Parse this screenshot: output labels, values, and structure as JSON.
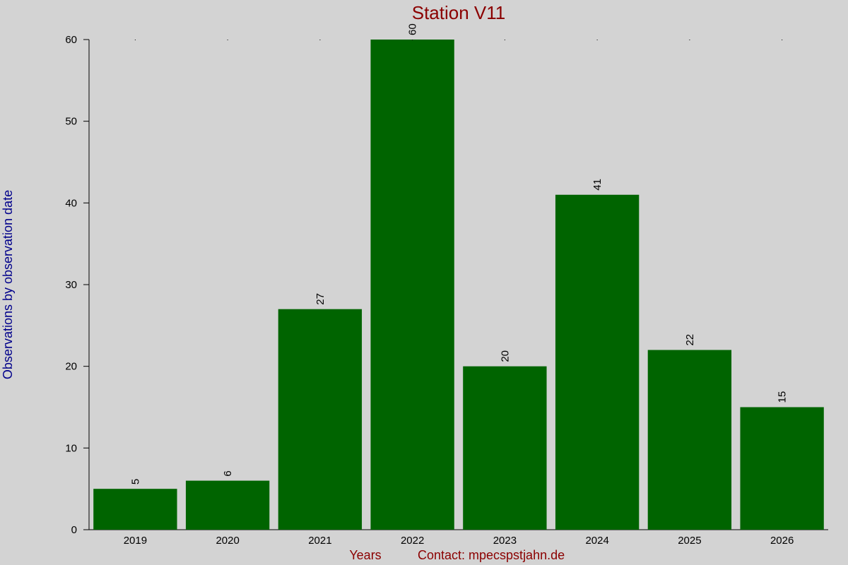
{
  "chart_data": {
    "type": "bar",
    "title": "Station V11",
    "xlabel": "Years",
    "contact": "Contact: mpecspstjahn.de",
    "ylabel": "Observations by observation date",
    "categories": [
      "2019",
      "2020",
      "2021",
      "2022",
      "2023",
      "2024",
      "2025",
      "2026"
    ],
    "values": [
      5,
      6,
      27,
      60,
      20,
      41,
      22,
      15
    ],
    "ylim": [
      0,
      60
    ],
    "yticks": [
      0,
      10,
      20,
      30,
      40,
      50,
      60
    ],
    "grid": false,
    "legend": "none",
    "colors": {
      "bar": "#006400",
      "background": "#d3d3d3",
      "title": "#8b0000",
      "ylabel": "#00008b"
    }
  }
}
